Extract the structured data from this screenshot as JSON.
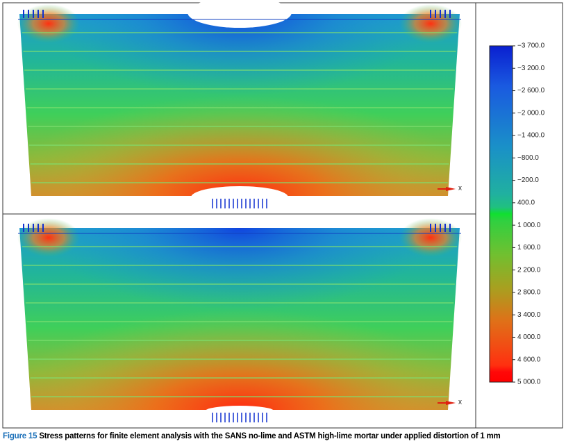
{
  "figure": {
    "panels": [
      {
        "axis_label": "x"
      },
      {
        "axis_label": "x"
      }
    ],
    "colorbar": {
      "labels": [
        "−3 700.0",
        "−3 200.0",
        "−2 600.0",
        "−2 000.0",
        "−1 400.0",
        "−800.0",
        "−200.0",
        "400.0",
        "1 000.0",
        "1 600.0",
        "2 200.0",
        "2 800.0",
        "3 400.0",
        "4 000.0",
        "4 600.0",
        "5 000.0"
      ]
    }
  },
  "caption": {
    "label": "Figure 15",
    "text": "Stress patterns for finite element analysis with the SANS no-lime and ASTM high-lime mortar under applied distortion of 1 mm"
  }
}
